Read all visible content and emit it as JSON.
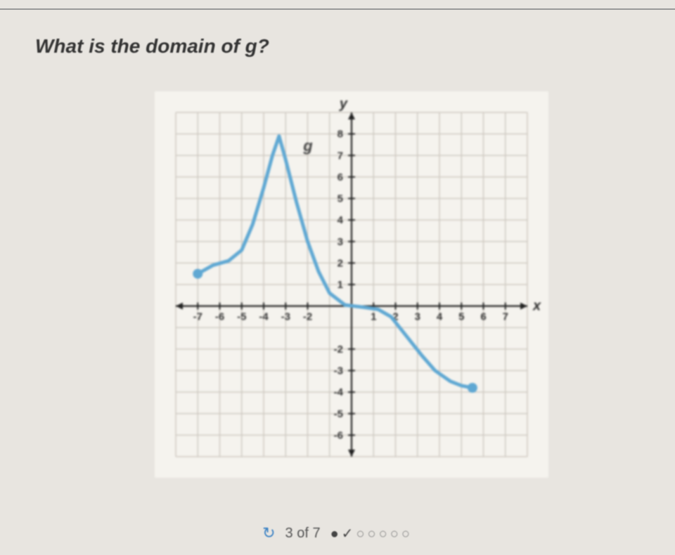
{
  "question": {
    "prefix": "What is the domain of ",
    "variable": "g",
    "suffix": "?"
  },
  "chart": {
    "type": "line",
    "background_color": "#f5f3ee",
    "grid_color": "#cfcac2",
    "axis_color": "#222222",
    "curve_color": "#5fa8d3",
    "curve_width": 5,
    "endpoint_color": "#5fa8d3",
    "endpoint_radius": 7,
    "x_axis": {
      "label": "x",
      "min": -8,
      "max": 8,
      "tick_step": 1,
      "ticks_labeled": [
        -7,
        -6,
        -5,
        -4,
        -3,
        -2,
        1,
        2,
        3,
        4,
        5,
        6,
        7
      ]
    },
    "y_axis": {
      "label": "y",
      "min": -7,
      "max": 9,
      "tick_step": 1,
      "ticks_labeled": [
        -6,
        -5,
        -4,
        -3,
        -2,
        1,
        2,
        3,
        4,
        5,
        6,
        7,
        8
      ]
    },
    "curve_label": {
      "text": "g",
      "x": -2.2,
      "y": 7.2,
      "fontsize": 22,
      "color": "#444444"
    },
    "points": [
      {
        "x": -7,
        "y": 1.5,
        "endpoint": true
      },
      {
        "x": -6.3,
        "y": 1.9
      },
      {
        "x": -5.6,
        "y": 2.1
      },
      {
        "x": -5.0,
        "y": 2.6
      },
      {
        "x": -4.5,
        "y": 3.8
      },
      {
        "x": -4.0,
        "y": 5.5
      },
      {
        "x": -3.6,
        "y": 7.0
      },
      {
        "x": -3.3,
        "y": 7.9
      },
      {
        "x": -3.0,
        "y": 6.8
      },
      {
        "x": -2.5,
        "y": 4.8
      },
      {
        "x": -2.0,
        "y": 3.0
      },
      {
        "x": -1.5,
        "y": 1.6
      },
      {
        "x": -1.0,
        "y": 0.6
      },
      {
        "x": -0.3,
        "y": 0.05
      },
      {
        "x": 0.5,
        "y": -0.05
      },
      {
        "x": 1.2,
        "y": -0.15
      },
      {
        "x": 1.8,
        "y": -0.5
      },
      {
        "x": 2.5,
        "y": -1.4
      },
      {
        "x": 3.2,
        "y": -2.3
      },
      {
        "x": 3.8,
        "y": -3.0
      },
      {
        "x": 4.5,
        "y": -3.5
      },
      {
        "x": 5.0,
        "y": -3.7
      },
      {
        "x": 5.5,
        "y": -3.8,
        "endpoint": true
      }
    ],
    "label_fontsize": 16,
    "tick_fontsize": 15,
    "tick_color": "#333333"
  },
  "footer": {
    "refresh_icon": "↻",
    "progress_text": "3 of 7",
    "dots": [
      "●",
      "✓",
      "○",
      "○",
      "○",
      "○",
      "○"
    ]
  }
}
